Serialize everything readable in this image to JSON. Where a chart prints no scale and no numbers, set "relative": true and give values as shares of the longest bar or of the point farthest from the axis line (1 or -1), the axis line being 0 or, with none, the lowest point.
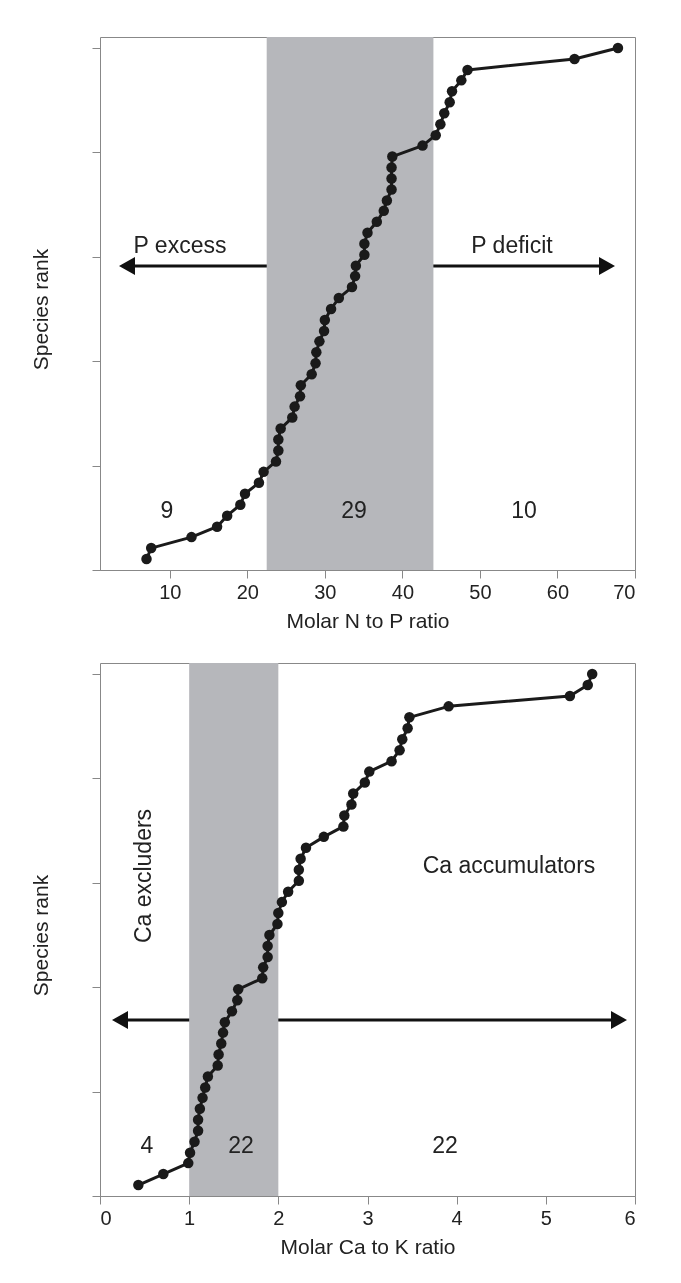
{
  "chart_data": [
    {
      "type": "line",
      "relative": true,
      "marker": "circle",
      "tick_labels": "x",
      "xlabel": "Molar N to P ratio",
      "ylabel": "Species rank",
      "xlim": [
        1,
        70
      ],
      "xticks": [
        10,
        20,
        30,
        40,
        50,
        60,
        70
      ],
      "x": [
        7.0,
        7.6,
        12.8,
        16.1,
        17.4,
        19.1,
        19.7,
        21.5,
        22.1,
        23.7,
        24.0,
        24.0,
        24.3,
        25.8,
        26.1,
        26.8,
        26.9,
        28.3,
        28.8,
        28.9,
        29.3,
        29.9,
        30.0,
        30.8,
        31.8,
        33.5,
        33.9,
        34.0,
        35.1,
        35.1,
        35.5,
        36.7,
        37.6,
        38.0,
        38.6,
        38.6,
        38.6,
        38.7,
        42.6,
        44.3,
        44.9,
        45.4,
        46.1,
        46.4,
        47.6,
        48.4,
        62.2,
        67.8
      ],
      "series": [
        {
          "color": "#1a1a1a",
          "values": [
            0.021,
            0.042,
            0.063,
            0.083,
            0.104,
            0.125,
            0.146,
            0.167,
            0.188,
            0.208,
            0.229,
            0.25,
            0.271,
            0.292,
            0.313,
            0.333,
            0.354,
            0.375,
            0.396,
            0.417,
            0.438,
            0.458,
            0.479,
            0.5,
            0.521,
            0.542,
            0.563,
            0.583,
            0.604,
            0.625,
            0.646,
            0.667,
            0.688,
            0.708,
            0.729,
            0.75,
            0.771,
            0.792,
            0.813,
            0.833,
            0.854,
            0.875,
            0.896,
            0.917,
            0.938,
            0.958,
            0.979,
            1
          ]
        }
      ],
      "bands": [
        {
          "axis": "x",
          "from": 22.5,
          "to": 44.0,
          "color": "#b6b7bb"
        }
      ],
      "annotations": [
        "P excess",
        "P deficit",
        "9",
        "29",
        "10"
      ]
    },
    {
      "type": "line",
      "relative": true,
      "marker": "circle",
      "tick_labels": "x",
      "xlabel": "Molar Ca to K ratio",
      "ylabel": "Species rank",
      "xlim": [
        0,
        6
      ],
      "xticks": [
        0,
        1,
        2,
        3,
        4,
        5,
        6
      ],
      "x": [
        0.43,
        0.71,
        0.99,
        1.01,
        1.06,
        1.1,
        1.1,
        1.12,
        1.15,
        1.18,
        1.21,
        1.32,
        1.33,
        1.36,
        1.38,
        1.4,
        1.48,
        1.54,
        1.55,
        1.82,
        1.83,
        1.88,
        1.88,
        1.9,
        1.99,
        2.0,
        2.04,
        2.11,
        2.23,
        2.23,
        2.25,
        2.31,
        2.51,
        2.73,
        2.74,
        2.82,
        2.84,
        2.97,
        3.02,
        3.27,
        3.36,
        3.39,
        3.45,
        3.47,
        3.91,
        5.27,
        5.47,
        5.52
      ],
      "series": [
        {
          "color": "#1a1a1a",
          "values": [
            0.021,
            0.042,
            0.063,
            0.083,
            0.104,
            0.125,
            0.146,
            0.167,
            0.188,
            0.208,
            0.229,
            0.25,
            0.271,
            0.292,
            0.313,
            0.333,
            0.354,
            0.375,
            0.396,
            0.417,
            0.438,
            0.458,
            0.479,
            0.5,
            0.521,
            0.542,
            0.563,
            0.583,
            0.604,
            0.625,
            0.646,
            0.667,
            0.688,
            0.708,
            0.729,
            0.75,
            0.771,
            0.792,
            0.813,
            0.833,
            0.854,
            0.875,
            0.896,
            0.917,
            0.938,
            0.958,
            0.979,
            1
          ]
        }
      ],
      "bands": [
        {
          "axis": "x",
          "from": 1.0,
          "to": 2.0,
          "color": "#b6b7bb"
        }
      ],
      "annotations": [
        "Ca excluders",
        "Ca accumulators",
        "4",
        "22",
        "22"
      ]
    }
  ]
}
